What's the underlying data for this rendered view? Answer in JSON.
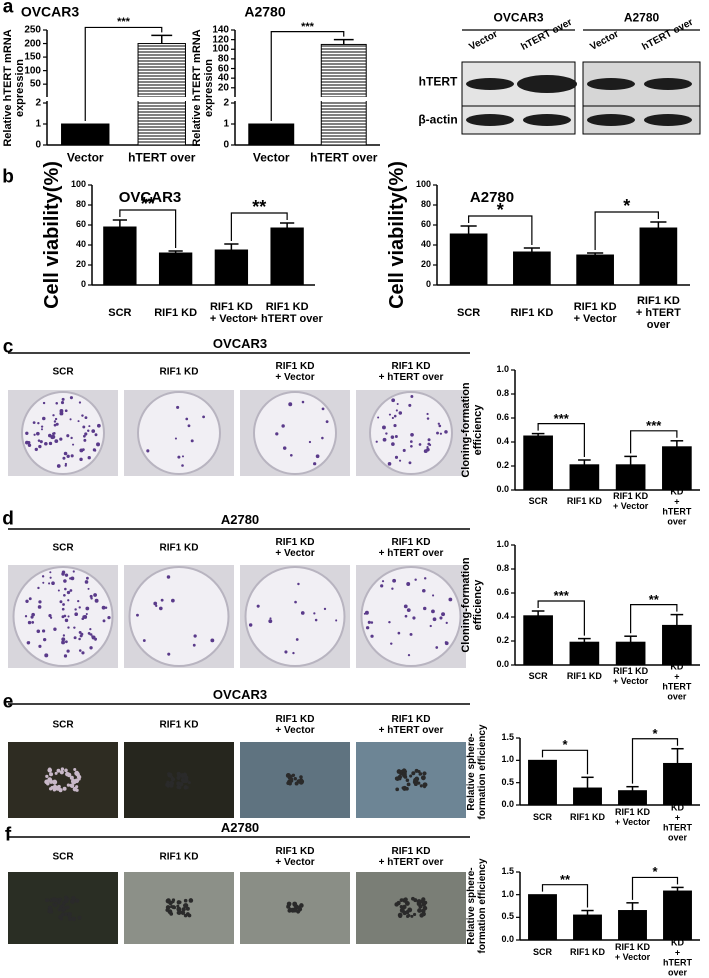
{
  "panel_labels": [
    "a",
    "b",
    "c",
    "d",
    "e",
    "f"
  ],
  "chart_data": [
    {
      "type": "bar",
      "title": "OVCAR3",
      "ylabel": "Relative hTERT mRNA\nexpression",
      "categories": [
        "Vector",
        "hTERT over"
      ],
      "values": [
        1,
        200
      ],
      "errors": [
        0,
        30
      ],
      "colors": [
        "#000000",
        "#ffffff"
      ],
      "hatch": [
        false,
        true
      ],
      "ylim": [
        0,
        250
      ],
      "ybreak": [
        2,
        10
      ],
      "yticks": [
        0,
        1,
        2,
        50,
        100,
        150,
        200,
        250
      ],
      "annotations": [
        {
          "from": 0,
          "to": 1,
          "label": "***"
        }
      ]
    },
    {
      "type": "bar",
      "title": "A2780",
      "ylabel": "Relative hTERT mRNA\nexpression",
      "categories": [
        "Vector",
        "hTERT over"
      ],
      "values": [
        1,
        110
      ],
      "errors": [
        0,
        10
      ],
      "colors": [
        "#000000",
        "#ffffff"
      ],
      "hatch": [
        false,
        true
      ],
      "ylim": [
        0,
        140
      ],
      "ybreak": [
        2,
        5
      ],
      "yticks": [
        0,
        1,
        2,
        20,
        40,
        60,
        80,
        100,
        120,
        140
      ],
      "annotations": [
        {
          "from": 0,
          "to": 1,
          "label": "***"
        }
      ]
    },
    {
      "type": "bar",
      "title": "OVCAR3",
      "ylabel": "Cell viability(%)",
      "categories": [
        "SCR",
        "RIF1 KD",
        "RIF1 KD\n+ Vector",
        "RIF1 KD\n+ hTERT over"
      ],
      "values": [
        58,
        32,
        35,
        57
      ],
      "errors": [
        7,
        2,
        6,
        5
      ],
      "color": "#000000",
      "ylim": [
        0,
        100
      ],
      "yticks": [
        0,
        20,
        40,
        60,
        80,
        100
      ],
      "annotations": [
        {
          "from": 0,
          "to": 1,
          "label": "**"
        },
        {
          "from": 2,
          "to": 3,
          "label": "**"
        }
      ]
    },
    {
      "type": "bar",
      "title": "A2780",
      "ylabel": "Cell viability(%)",
      "categories": [
        "SCR",
        "RIF1 KD",
        "RIF1 KD\n+ Vector",
        "RIF1 KD\n+ hTERT over"
      ],
      "values": [
        51,
        33,
        30,
        57
      ],
      "errors": [
        8,
        4,
        2,
        6
      ],
      "color": "#000000",
      "ylim": [
        0,
        100
      ],
      "yticks": [
        0,
        20,
        40,
        60,
        80,
        100
      ],
      "annotations": [
        {
          "from": 0,
          "to": 1,
          "label": "*"
        },
        {
          "from": 2,
          "to": 3,
          "label": "*"
        }
      ]
    },
    {
      "type": "bar",
      "ylabel": "Cloning-formation\nefficiency",
      "categories": [
        "SCR",
        "RIF1 KD",
        "RIF1 KD\n+ Vector",
        "RIF1 KD\n+ hTERT over"
      ],
      "values": [
        0.45,
        0.21,
        0.21,
        0.36
      ],
      "errors": [
        0.02,
        0.04,
        0.07,
        0.05
      ],
      "color": "#000000",
      "ylim": [
        0,
        1
      ],
      "yticks": [
        {
          "value": 0,
          "label": "0.0"
        },
        0.2,
        0.4,
        0.6,
        0.8,
        {
          "value": 1,
          "label": "1.0"
        }
      ],
      "annotations": [
        {
          "from": 0,
          "to": 1,
          "label": "***"
        },
        {
          "from": 2,
          "to": 3,
          "label": "***"
        }
      ]
    },
    {
      "type": "bar",
      "ylabel": "Cloning-formation\nefficiency",
      "categories": [
        "SCR",
        "RIF1 KD",
        "RIF1 KD\n+ Vector",
        "RIF1 KD\n+ hTERT over"
      ],
      "values": [
        0.41,
        0.19,
        0.19,
        0.33
      ],
      "errors": [
        0.04,
        0.03,
        0.05,
        0.09
      ],
      "color": "#000000",
      "ylim": [
        0,
        1
      ],
      "yticks": [
        {
          "value": 0,
          "label": "0.0"
        },
        0.2,
        0.4,
        0.6,
        0.8,
        {
          "value": 1,
          "label": "1.0"
        }
      ],
      "annotations": [
        {
          "from": 0,
          "to": 1,
          "label": "***"
        },
        {
          "from": 2,
          "to": 3,
          "label": "**"
        }
      ]
    },
    {
      "type": "bar",
      "ylabel": "Relative sphere-\nformation efficiency",
      "categories": [
        "SCR",
        "RIF1 KD",
        "RIF1 KD\n+ Vector",
        "RIF1 KD\n+ hTERT over"
      ],
      "values": [
        1.0,
        0.38,
        0.32,
        0.93
      ],
      "errors": [
        0,
        0.24,
        0.09,
        0.33
      ],
      "color": "#000000",
      "ylim": [
        0,
        1.5
      ],
      "yticks": [
        {
          "value": 0,
          "label": "0.0"
        },
        0.5,
        {
          "value": 1,
          "label": "1.0"
        },
        1.5
      ],
      "annotations": [
        {
          "from": 0,
          "to": 1,
          "label": "*"
        },
        {
          "from": 2,
          "to": 3,
          "label": "*"
        }
      ]
    },
    {
      "type": "bar",
      "ylabel": "Relative sphere-\nformation efficiency",
      "categories": [
        "SCR",
        "RIF1 KD",
        "RIF1 KD\n+ Vector",
        "RIF1 KD\n+ hTERT over"
      ],
      "values": [
        1.0,
        0.55,
        0.65,
        1.08
      ],
      "errors": [
        0,
        0.1,
        0.17,
        0.08
      ],
      "color": "#000000",
      "ylim": [
        0,
        1.5
      ],
      "yticks": [
        {
          "value": 0,
          "label": "0.0"
        },
        0.5,
        {
          "value": 1,
          "label": "1.0"
        },
        1.5
      ],
      "annotations": [
        {
          "from": 0,
          "to": 1,
          "label": "**"
        },
        {
          "from": 2,
          "to": 3,
          "label": "*"
        }
      ]
    }
  ],
  "blot": {
    "cell_lines": [
      "OVCAR3",
      "A2780"
    ],
    "lanes": [
      "Vector",
      "hTERT over"
    ],
    "proteins": [
      "hTERT",
      "β-actin"
    ]
  },
  "photo_panels": [
    {
      "title": "OVCAR3",
      "labels": [
        "SCR",
        "RIF1 KD",
        "RIF1 KD\n+ Vector",
        "RIF1 KD\n+ hTERT over"
      ]
    },
    {
      "title": "A2780",
      "labels": [
        "SCR",
        "RIF1 KD",
        "RIF1 KD\n+ Vector",
        "RIF1 KD\n+ hTERT over"
      ]
    },
    {
      "title": "OVCAR3",
      "labels": [
        "SCR",
        "RIF1 KD",
        "RIF1 KD\n+ Vector",
        "RIF1 KD\n+ hTERT over"
      ]
    },
    {
      "title": "A2780",
      "labels": [
        "SCR",
        "RIF1 KD",
        "RIF1 KD\n+ Vector",
        "RIF1 KD\n+ hTERT over"
      ]
    }
  ]
}
